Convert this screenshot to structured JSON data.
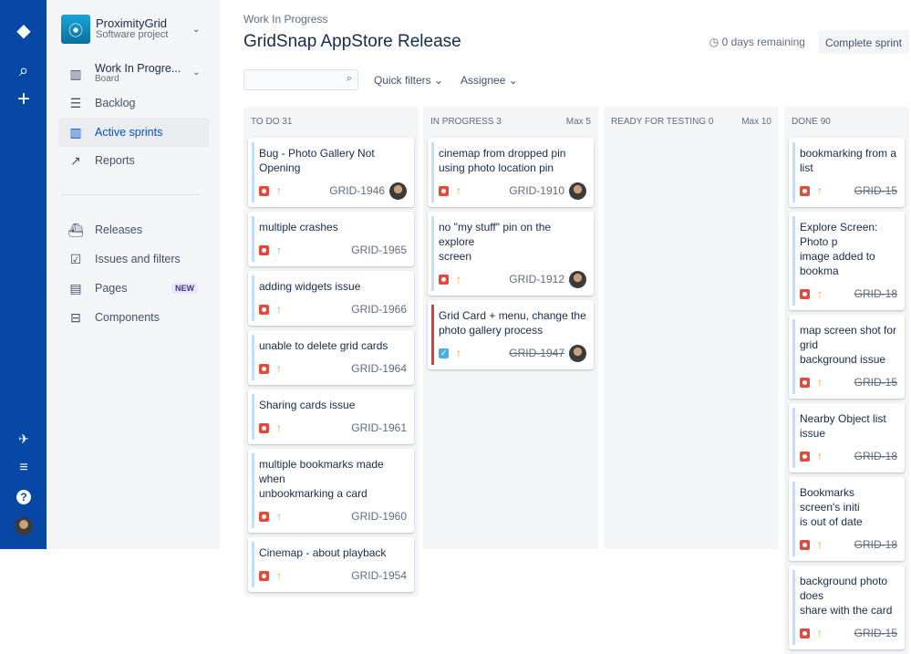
{
  "global_nav": {
    "icons": [
      "jira-logo-icon",
      "search-icon",
      "create-icon",
      "feedback-icon",
      "menu-icon",
      "help-icon",
      "profile-avatar"
    ]
  },
  "project": {
    "name": "ProximityGrid",
    "type": "Software project"
  },
  "sidebar": {
    "board": {
      "label": "Work In Progre...",
      "sub": "Board"
    },
    "items": [
      {
        "label": "Backlog"
      },
      {
        "label": "Active sprints"
      },
      {
        "label": "Reports"
      }
    ],
    "items2": [
      {
        "label": "Releases"
      },
      {
        "label": "Issues and filters"
      },
      {
        "label": "Pages",
        "badge": "NEW"
      },
      {
        "label": "Components"
      }
    ]
  },
  "header": {
    "breadcrumb": "Work In Progress",
    "title": "GridSnap AppStore Release",
    "remaining": "0 days remaining",
    "complete_label": "Complete sprint"
  },
  "filters": {
    "search_placeholder": "",
    "quick": "Quick filters",
    "assignee": "Assignee"
  },
  "columns": [
    {
      "name": "TO DO",
      "count": "31",
      "max": "",
      "cards": [
        {
          "title": "Bug - Photo Gallery Not\nOpening",
          "key": "GRID-1946",
          "type": "bug",
          "done": false,
          "avatar": true
        },
        {
          "title": "multiple crashes",
          "key": "GRID-1965",
          "type": "bug",
          "done": false,
          "avatar": false
        },
        {
          "title": "adding widgets issue",
          "key": "GRID-1966",
          "type": "bug",
          "done": false,
          "avatar": false
        },
        {
          "title": "unable to delete grid cards",
          "key": "GRID-1964",
          "type": "bug",
          "done": false,
          "avatar": false
        },
        {
          "title": "Sharing cards issue",
          "key": "GRID-1961",
          "type": "bug",
          "done": false,
          "avatar": false
        },
        {
          "title": "multiple bookmarks made when\nunbookmarking a card",
          "key": "GRID-1960",
          "type": "bug",
          "done": false,
          "avatar": false
        },
        {
          "title": "Cinemap - about playback",
          "key": "GRID-1954",
          "type": "bug",
          "done": false,
          "avatar": false
        }
      ]
    },
    {
      "name": "IN PROGRESS",
      "count": "3",
      "max": "Max 5",
      "cards": [
        {
          "title": "cinemap from dropped pin\nusing photo location pin",
          "key": "GRID-1910",
          "type": "bug",
          "done": false,
          "avatar": true
        },
        {
          "title": "no \"my stuff\" pin on the explore\nscreen",
          "key": "GRID-1912",
          "type": "bug",
          "done": false,
          "avatar": true
        },
        {
          "title": "Grid Card + menu, change the\nphoto gallery process",
          "key": "GRID-1947",
          "type": "task",
          "done": true,
          "avatar": true,
          "flag": "red"
        }
      ]
    },
    {
      "name": "READY FOR TESTING",
      "count": "0",
      "max": "Max 10",
      "cards": []
    },
    {
      "name": "DONE",
      "count": "90",
      "max": "",
      "cards": [
        {
          "title": "bookmarking from a list",
          "key": "GRID-15",
          "type": "bug",
          "done": true,
          "avatar": false
        },
        {
          "title": "Explore Screen: Photo p\nimage added to bookma",
          "key": "GRID-18",
          "type": "bug",
          "done": true,
          "avatar": false
        },
        {
          "title": "map screen shot for grid\nbackground issue",
          "key": "GRID-15",
          "type": "bug",
          "done": true,
          "avatar": false
        },
        {
          "title": "Nearby Object list issue",
          "key": "GRID-18",
          "type": "bug",
          "done": true,
          "avatar": false
        },
        {
          "title": "Bookmarks screen's initi\nis out of date",
          "key": "GRID-18",
          "type": "bug",
          "done": true,
          "avatar": false
        },
        {
          "title": "background photo does\nshare with the card",
          "key": "GRID-15",
          "type": "bug",
          "done": true,
          "avatar": false
        }
      ]
    }
  ],
  "colors": {
    "nav": "#0747a6",
    "accent": "#0052cc",
    "bug": "#e5493a",
    "priority": "#f79232"
  }
}
